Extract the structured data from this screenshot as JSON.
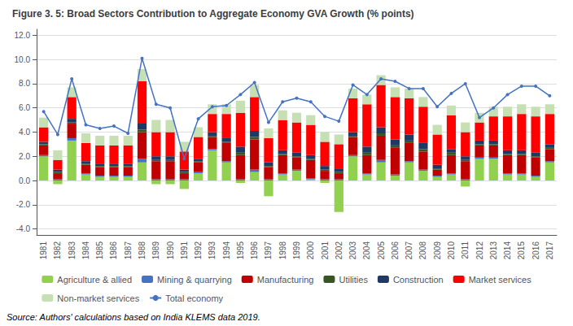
{
  "chart_data": {
    "type": "bar",
    "title": "Figure 3. 5: Broad Sectors Contribution to Aggregate Economy GVA Growth (% points)",
    "source": "Source: Authors' calculations based on India KLEMS data 2019.",
    "categories": [
      "1981",
      "1982",
      "1983",
      "1984",
      "1985",
      "1986",
      "1987",
      "1988",
      "1989",
      "1990",
      "1991",
      "1992",
      "1993",
      "1994",
      "1995",
      "1996",
      "1997",
      "1998",
      "1999",
      "2000",
      "2001",
      "2002",
      "2003",
      "2004",
      "2005",
      "2006",
      "2007",
      "2008",
      "2009",
      "2010",
      "2011",
      "2012",
      "2013",
      "2014",
      "2015",
      "2016",
      "2017"
    ],
    "stacked": true,
    "grid": true,
    "legend": "bottom",
    "ylim": [
      -4.5,
      12.5
    ],
    "yticks": [
      {
        "value": -4.0,
        "label": "-4.0"
      },
      {
        "value": -2.0,
        "label": "-2.0"
      },
      {
        "value": 0.0,
        "label": "0.0"
      },
      {
        "value": 2.0,
        "label": "2.0"
      },
      {
        "value": 4.0,
        "label": "4.0"
      },
      {
        "value": 6.0,
        "label": "6.0"
      },
      {
        "value": 8.0,
        "label": "8.0"
      },
      {
        "value": 10.0,
        "label": "10.0"
      },
      {
        "value": 12.0,
        "label": "12.0"
      }
    ],
    "series": [
      {
        "name": "Agriculture & allied",
        "type": "bar",
        "color": "#92D050",
        "values": [
          2.0,
          -0.3,
          3.3,
          0.5,
          0.3,
          0.3,
          0.3,
          1.5,
          -0.3,
          -0.3,
          -0.7,
          0.6,
          2.5,
          1.5,
          -0.2,
          0.7,
          -1.3,
          0.5,
          0.8,
          0.1,
          -0.2,
          -2.6,
          2.0,
          0.5,
          1.5,
          0.4,
          1.5,
          0.8,
          0.3,
          0.5,
          -0.5,
          1.8,
          1.8,
          0.5,
          0.5,
          0.3,
          1.5
        ]
      },
      {
        "name": "Mining & quarrying",
        "type": "bar",
        "color": "#4472C4",
        "values": [
          0.1,
          0.1,
          0.2,
          0.1,
          0.1,
          0.1,
          0.1,
          0.3,
          0.1,
          0.1,
          0.1,
          0.1,
          0.1,
          0.1,
          0.1,
          0.2,
          0.1,
          0.1,
          0.1,
          0.1,
          0.1,
          0.1,
          0.1,
          0.1,
          0.2,
          0.1,
          0.1,
          0.1,
          0.1,
          0.1,
          0.1,
          0.1,
          0.1,
          0.1,
          0.1,
          0.1,
          0.1
        ]
      },
      {
        "name": "Manufacturing",
        "type": "bar",
        "color": "#C00000",
        "values": [
          0.8,
          0.5,
          1.2,
          0.7,
          0.7,
          0.7,
          0.7,
          2.2,
          1.5,
          1.5,
          0.5,
          0.8,
          1.0,
          1.5,
          2.0,
          2.5,
          1.0,
          1.5,
          1.0,
          1.5,
          0.7,
          0.5,
          1.5,
          1.5,
          2.0,
          2.2,
          1.5,
          1.5,
          0.5,
          1.5,
          1.5,
          1.0,
          1.0,
          1.5,
          1.5,
          1.5,
          1.0
        ]
      },
      {
        "name": "Utilities",
        "type": "bar",
        "color": "#375623",
        "values": [
          0.1,
          0.1,
          0.1,
          0.1,
          0.1,
          0.1,
          0.1,
          0.2,
          0.1,
          0.1,
          0.1,
          0.1,
          0.1,
          0.1,
          0.2,
          0.2,
          0.1,
          0.1,
          0.1,
          0.1,
          0.1,
          0.1,
          0.1,
          0.2,
          0.2,
          0.2,
          0.2,
          0.2,
          0.1,
          0.2,
          0.1,
          0.1,
          0.1,
          0.1,
          0.1,
          0.1,
          0.1
        ]
      },
      {
        "name": "Construction",
        "type": "bar",
        "color": "#203864",
        "values": [
          0.2,
          0.2,
          0.3,
          0.2,
          0.2,
          0.2,
          0.2,
          0.5,
          0.3,
          0.3,
          0.2,
          0.2,
          0.3,
          0.3,
          0.5,
          0.5,
          0.3,
          0.3,
          0.3,
          0.3,
          0.3,
          0.3,
          0.3,
          0.5,
          0.5,
          0.5,
          0.5,
          0.5,
          0.3,
          0.3,
          0.3,
          0.3,
          0.3,
          0.3,
          0.3,
          0.3,
          0.3
        ]
      },
      {
        "name": "Market services",
        "type": "bar",
        "color": "#FF0000",
        "values": [
          1.2,
          0.8,
          1.8,
          1.5,
          1.5,
          1.5,
          1.5,
          3.5,
          2.0,
          2.0,
          1.5,
          1.8,
          1.5,
          2.0,
          2.8,
          2.8,
          2.0,
          2.5,
          2.5,
          2.5,
          2.0,
          2.0,
          2.8,
          3.5,
          3.5,
          3.5,
          3.0,
          3.0,
          2.5,
          2.8,
          2.0,
          1.5,
          2.0,
          2.8,
          3.0,
          3.0,
          2.5
        ]
      },
      {
        "name": "Non-market services",
        "type": "bar",
        "color": "#C6E0B4",
        "values": [
          0.8,
          0.8,
          0.8,
          0.8,
          0.8,
          0.8,
          0.8,
          1.0,
          1.0,
          1.0,
          0.8,
          0.8,
          0.8,
          0.8,
          1.0,
          1.0,
          0.8,
          0.8,
          0.8,
          0.8,
          0.8,
          0.8,
          0.8,
          0.8,
          0.8,
          0.8,
          0.8,
          0.8,
          0.8,
          0.8,
          0.8,
          0.8,
          0.8,
          0.8,
          0.8,
          0.8,
          0.8
        ]
      },
      {
        "name": "Total economy",
        "type": "line",
        "color": "#4472C4",
        "marker": "circle",
        "line_style": "solid",
        "values": [
          5.7,
          3.8,
          8.4,
          4.6,
          4.3,
          4.5,
          3.9,
          10.1,
          6.3,
          6.0,
          1.8,
          5.1,
          6.1,
          6.2,
          7.1,
          8.1,
          4.8,
          6.5,
          6.8,
          6.5,
          5.3,
          4.9,
          7.9,
          7.1,
          8.4,
          8.2,
          7.6,
          7.6,
          6.1,
          7.2,
          8.0,
          5.2,
          6.0,
          7.1,
          7.8,
          7.8,
          7.0
        ]
      }
    ]
  }
}
